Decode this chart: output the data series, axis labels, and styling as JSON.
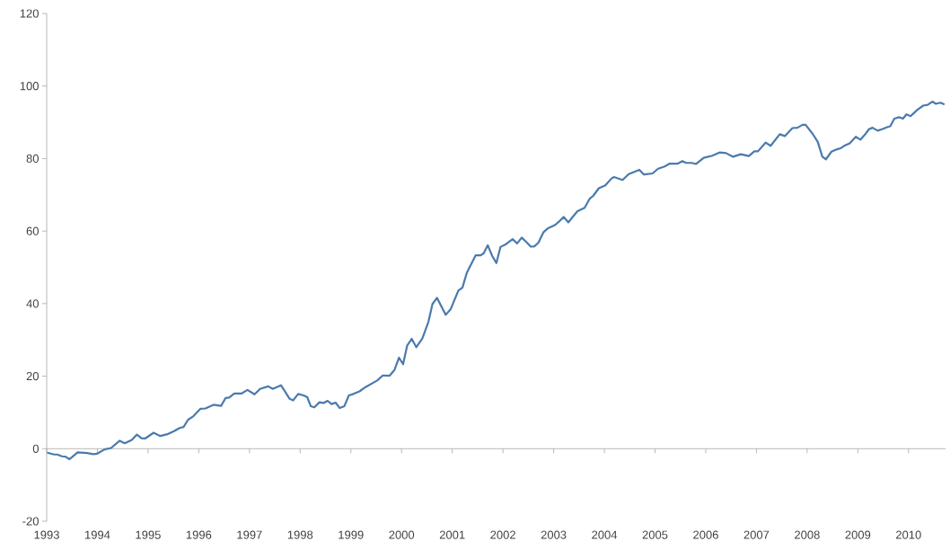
{
  "chart_data": {
    "type": "line",
    "color": "#4a7aad",
    "x": [
      1993.01,
      1993.15,
      1993.21,
      1993.3,
      1993.37,
      1993.45,
      1993.61,
      1993.8,
      1993.92,
      1993.99,
      1994.14,
      1994.27,
      1994.44,
      1994.54,
      1994.68,
      1994.78,
      1994.87,
      1994.94,
      1995.11,
      1995.24,
      1995.38,
      1995.52,
      1995.62,
      1995.7,
      1995.79,
      1995.89,
      1996.03,
      1996.13,
      1996.29,
      1996.44,
      1996.53,
      1996.6,
      1996.7,
      1996.84,
      1996.96,
      1997.1,
      1997.21,
      1997.37,
      1997.46,
      1997.62,
      1997.69,
      1997.79,
      1997.86,
      1997.96,
      1998.07,
      1998.14,
      1998.21,
      1998.28,
      1998.38,
      1998.46,
      1998.54,
      1998.62,
      1998.7,
      1998.78,
      1998.87,
      1998.96,
      1999.05,
      1999.17,
      1999.29,
      1999.52,
      1999.63,
      1999.76,
      1999.86,
      1999.95,
      2000.03,
      2000.11,
      2000.2,
      2000.29,
      2000.41,
      2000.53,
      2000.61,
      2000.7,
      2000.87,
      2000.97,
      2001.12,
      2001.2,
      2001.29,
      2001.46,
      2001.56,
      2001.62,
      2001.7,
      2001.79,
      2001.87,
      2001.95,
      2002.06,
      2002.19,
      2002.28,
      2002.37,
      2002.46,
      2002.55,
      2002.62,
      2002.7,
      2002.8,
      2002.88,
      2003.03,
      2003.12,
      2003.2,
      2003.29,
      2003.37,
      2003.47,
      2003.61,
      2003.71,
      2003.78,
      2003.89,
      2004.02,
      2004.14,
      2004.19,
      2004.36,
      2004.48,
      2004.69,
      2004.78,
      2004.95,
      2005.06,
      2005.19,
      2005.29,
      2005.45,
      2005.54,
      2005.61,
      2005.72,
      2005.81,
      2005.96,
      2006.13,
      2006.28,
      2006.4,
      2006.54,
      2006.69,
      2006.85,
      2006.96,
      2007.03,
      2007.18,
      2007.28,
      2007.46,
      2007.56,
      2007.71,
      2007.81,
      2007.91,
      2007.97,
      2008.11,
      2008.21,
      2008.3,
      2008.37,
      2008.48,
      2008.58,
      2008.67,
      2008.73,
      2008.84,
      2008.96,
      2009.05,
      2009.14,
      2009.22,
      2009.29,
      2009.39,
      2009.48,
      2009.59,
      2009.64,
      2009.72,
      2009.82,
      2009.89,
      2009.96,
      2010.04,
      2010.17,
      2010.29,
      2010.38,
      2010.47,
      2010.54,
      2010.63,
      2010.71
    ],
    "values": [
      -1.1,
      -1.6,
      -1.6,
      -2.1,
      -2.2,
      -2.9,
      -1.0,
      -1.2,
      -1.5,
      -1.4,
      -0.2,
      0.2,
      2.2,
      1.5,
      2.4,
      3.9,
      2.9,
      2.8,
      4.4,
      3.5,
      4.0,
      4.9,
      5.7,
      6.0,
      8.0,
      8.9,
      11.0,
      11.1,
      12.1,
      11.8,
      14.0,
      14.1,
      15.2,
      15.2,
      16.2,
      15.0,
      16.5,
      17.2,
      16.5,
      17.5,
      16.0,
      13.8,
      13.3,
      15.1,
      14.7,
      14.2,
      11.7,
      11.4,
      12.8,
      12.6,
      13.2,
      12.3,
      12.7,
      11.2,
      11.7,
      14.7,
      15.1,
      15.8,
      17.0,
      18.8,
      20.2,
      20.1,
      21.7,
      25.1,
      23.3,
      28.4,
      30.3,
      28.0,
      30.4,
      35.0,
      39.9,
      41.6,
      36.9,
      38.5,
      43.6,
      44.4,
      48.6,
      53.3,
      53.3,
      53.9,
      56.1,
      53.1,
      51.2,
      55.6,
      56.4,
      57.8,
      56.6,
      58.2,
      57.0,
      55.7,
      55.8,
      56.8,
      59.7,
      60.7,
      61.7,
      62.8,
      63.9,
      62.4,
      63.8,
      65.5,
      66.4,
      68.9,
      69.7,
      71.8,
      72.6,
      74.5,
      74.9,
      74.1,
      75.7,
      76.9,
      75.6,
      75.9,
      77.2,
      77.8,
      78.6,
      78.6,
      79.3,
      78.8,
      78.8,
      78.5,
      80.2,
      80.8,
      81.7,
      81.5,
      80.5,
      81.2,
      80.7,
      82.0,
      82.0,
      84.4,
      83.5,
      86.7,
      86.2,
      88.4,
      88.5,
      89.3,
      89.3,
      86.8,
      84.6,
      80.5,
      79.8,
      81.9,
      82.5,
      82.9,
      83.5,
      84.2,
      86.0,
      85.2,
      86.6,
      88.1,
      88.5,
      87.7,
      88.1,
      88.7,
      88.9,
      91.0,
      91.4,
      91.0,
      92.2,
      91.7,
      93.4,
      94.6,
      94.8,
      95.7,
      95.1,
      95.4,
      94.9
    ],
    "xlim": [
      1993,
      2010.73
    ],
    "ylim": [
      -20,
      120
    ],
    "xticks": [
      1993,
      1994,
      1995,
      1996,
      1997,
      1998,
      1999,
      2000,
      2001,
      2002,
      2003,
      2004,
      2005,
      2006,
      2007,
      2008,
      2009,
      2010
    ],
    "yticks": [
      -20,
      0,
      20,
      40,
      60,
      80,
      100,
      120
    ]
  }
}
